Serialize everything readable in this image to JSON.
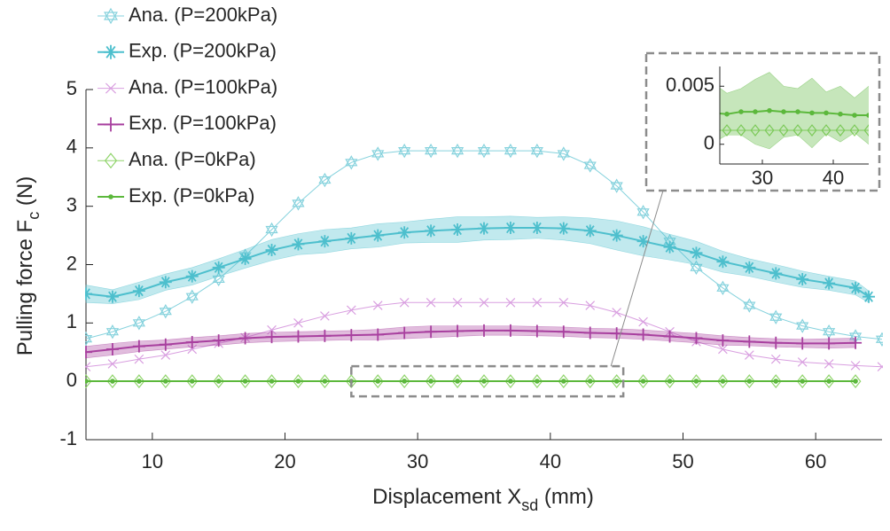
{
  "chart_data": {
    "type": "line",
    "xlabel": "Displacement X",
    "xlabel_sub": "sd",
    "xlabel_unit": "(mm)",
    "ylabel": "Pulling force F",
    "ylabel_sub": "c",
    "ylabel_unit": "(N)",
    "xlim": [
      5,
      65
    ],
    "ylim": [
      -1,
      5
    ],
    "xticks": [
      10,
      20,
      30,
      40,
      50,
      60
    ],
    "yticks": [
      -1,
      0,
      1,
      2,
      3,
      4,
      5
    ],
    "legend": "upper left",
    "series": [
      {
        "name": "Ana. (P=200kPa)",
        "color": "#86d2dd",
        "marker": "hexagram",
        "x": [
          5,
          7,
          9,
          11,
          13,
          15,
          17,
          19,
          21,
          23,
          25,
          27,
          29,
          31,
          33,
          35,
          37,
          39,
          41,
          43,
          45,
          47,
          49,
          51,
          53,
          55,
          57,
          59,
          61,
          63,
          65
        ],
        "values": [
          0.73,
          0.85,
          1.0,
          1.2,
          1.45,
          1.75,
          2.15,
          2.6,
          3.05,
          3.45,
          3.75,
          3.9,
          3.95,
          3.95,
          3.95,
          3.95,
          3.95,
          3.95,
          3.9,
          3.7,
          3.35,
          2.9,
          2.4,
          1.95,
          1.6,
          1.3,
          1.1,
          0.95,
          0.85,
          0.77,
          0.72
        ]
      },
      {
        "name": "Exp. (P=200kPa)",
        "color": "#4dbfcd",
        "marker": "asterisk",
        "x": [
          5,
          7,
          9,
          11,
          13,
          15,
          17,
          19,
          21,
          23,
          25,
          27,
          29,
          31,
          33,
          35,
          37,
          39,
          41,
          43,
          45,
          47,
          49,
          51,
          53,
          55,
          57,
          59,
          61,
          63,
          64
        ],
        "values": [
          1.5,
          1.45,
          1.55,
          1.7,
          1.8,
          1.95,
          2.1,
          2.25,
          2.35,
          2.4,
          2.45,
          2.5,
          2.55,
          2.58,
          2.6,
          2.62,
          2.63,
          2.63,
          2.62,
          2.58,
          2.5,
          2.4,
          2.3,
          2.2,
          2.05,
          1.95,
          1.85,
          1.75,
          1.68,
          1.6,
          1.45
        ],
        "errors": [
          0.15,
          0.12,
          0.15,
          0.14,
          0.15,
          0.15,
          0.16,
          0.18,
          0.18,
          0.2,
          0.18,
          0.2,
          0.18,
          0.2,
          0.22,
          0.2,
          0.2,
          0.18,
          0.2,
          0.22,
          0.25,
          0.25,
          0.22,
          0.2,
          0.18,
          0.15,
          0.15,
          0.14,
          0.12,
          0.12,
          0.1
        ]
      },
      {
        "name": "Ana. (P=100kPa)",
        "color": "#d99fe0",
        "marker": "x",
        "x": [
          5,
          7,
          9,
          11,
          13,
          15,
          17,
          19,
          21,
          23,
          25,
          27,
          29,
          31,
          33,
          35,
          37,
          39,
          41,
          43,
          45,
          47,
          49,
          51,
          53,
          55,
          57,
          59,
          61,
          63,
          65
        ],
        "values": [
          0.25,
          0.3,
          0.38,
          0.45,
          0.55,
          0.65,
          0.75,
          0.88,
          1.0,
          1.12,
          1.22,
          1.3,
          1.35,
          1.35,
          1.35,
          1.35,
          1.35,
          1.35,
          1.35,
          1.3,
          1.18,
          1.02,
          0.85,
          0.68,
          0.55,
          0.45,
          0.38,
          0.33,
          0.3,
          0.27,
          0.25
        ]
      },
      {
        "name": "Exp. (P=100kPa)",
        "color": "#a8409f",
        "marker": "plus",
        "x": [
          5,
          7,
          9,
          11,
          13,
          15,
          17,
          19,
          21,
          23,
          25,
          27,
          29,
          31,
          33,
          35,
          37,
          39,
          41,
          43,
          45,
          47,
          49,
          51,
          53,
          55,
          57,
          59,
          61,
          63
        ],
        "values": [
          0.5,
          0.55,
          0.6,
          0.63,
          0.67,
          0.7,
          0.74,
          0.76,
          0.77,
          0.78,
          0.79,
          0.8,
          0.83,
          0.85,
          0.86,
          0.87,
          0.87,
          0.86,
          0.85,
          0.83,
          0.82,
          0.8,
          0.77,
          0.74,
          0.7,
          0.68,
          0.66,
          0.65,
          0.65,
          0.66
        ],
        "errors": [
          0.1,
          0.1,
          0.09,
          0.08,
          0.08,
          0.08,
          0.08,
          0.08,
          0.08,
          0.08,
          0.08,
          0.09,
          0.1,
          0.1,
          0.09,
          0.08,
          0.08,
          0.08,
          0.08,
          0.08,
          0.08,
          0.08,
          0.08,
          0.08,
          0.08,
          0.07,
          0.07,
          0.07,
          0.08,
          0.08
        ]
      },
      {
        "name": "Ana. (P=0kPa)",
        "color": "#8fd46a",
        "marker": "diamond",
        "x": [
          5,
          7,
          9,
          11,
          13,
          15,
          17,
          19,
          21,
          23,
          25,
          27,
          29,
          31,
          33,
          35,
          37,
          39,
          41,
          43,
          45,
          47,
          49,
          51,
          53,
          55,
          57,
          59,
          61,
          63
        ],
        "values": [
          0.0012,
          0.0012,
          0.0012,
          0.0012,
          0.0012,
          0.0012,
          0.0012,
          0.0012,
          0.0012,
          0.0012,
          0.0012,
          0.0012,
          0.0012,
          0.0012,
          0.0012,
          0.0012,
          0.0012,
          0.0012,
          0.0012,
          0.0012,
          0.0012,
          0.0012,
          0.0012,
          0.0012,
          0.0012,
          0.0012,
          0.0012,
          0.0012,
          0.0012,
          0.0012
        ]
      },
      {
        "name": "Exp. (P=0kPa)",
        "color": "#5cb83c",
        "marker": "dot",
        "x": [
          5,
          7,
          9,
          11,
          13,
          15,
          17,
          19,
          21,
          23,
          25,
          27,
          29,
          31,
          33,
          35,
          37,
          39,
          41,
          43,
          45,
          47,
          49,
          51,
          53,
          55,
          57,
          59,
          61,
          63
        ],
        "values": [
          0.0022,
          0.0022,
          0.0023,
          0.0024,
          0.0025,
          0.0026,
          0.0026,
          0.0027,
          0.0027,
          0.0027,
          0.0026,
          0.0028,
          0.0028,
          0.0029,
          0.0028,
          0.0028,
          0.0027,
          0.0027,
          0.0026,
          0.0025,
          0.0025,
          0.0025,
          0.0024,
          0.0024,
          0.0023,
          0.0023,
          0.0022,
          0.0022,
          0.0022,
          0.0022
        ],
        "errors": [
          0.0015,
          0.002,
          0.0025,
          0.003,
          0.0022,
          0.0028,
          0.0018,
          0.0025,
          0.0032,
          0.0026,
          0.0018,
          0.002,
          0.0028,
          0.0033,
          0.0022,
          0.002,
          0.003,
          0.0018,
          0.0024,
          0.0015,
          0.0025,
          0.002,
          0.002,
          0.0022,
          0.0018,
          0.002,
          0.0022,
          0.0018,
          0.002,
          0.0018
        ]
      }
    ],
    "inset": {
      "xlim": [
        24,
        45
      ],
      "ylim": [
        -0.0017,
        0.0067
      ],
      "xticks": [
        30,
        40
      ],
      "yticks": [
        0,
        0.005
      ],
      "series": [
        4,
        5
      ]
    }
  }
}
